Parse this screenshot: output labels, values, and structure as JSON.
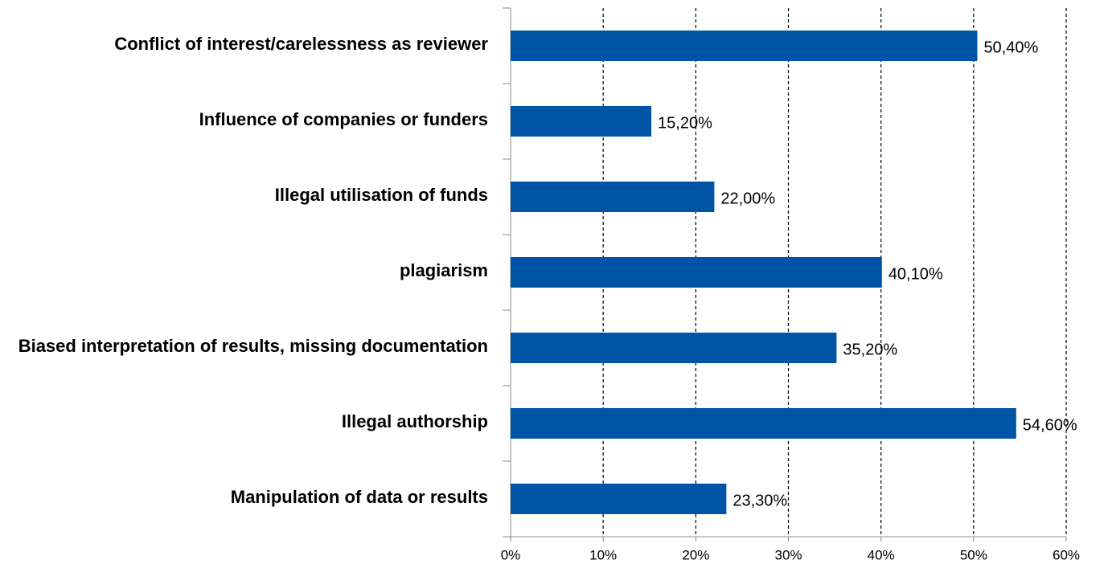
{
  "chart_data": {
    "type": "bar",
    "orientation": "horizontal",
    "categories": [
      "Conflict of interest/carelessness as reviewer",
      "Influence of companies or funders",
      "Illegal utilisation of funds",
      "plagiarism",
      "Biased interpretation of results, missing documentation",
      "Illegal authorship",
      "Manipulation of data or results"
    ],
    "values": [
      50.4,
      15.2,
      22.0,
      40.1,
      35.2,
      54.6,
      23.3
    ],
    "value_labels": [
      "50,40%",
      "15,20%",
      "22,00%",
      "40,10%",
      "35,20%",
      "54,60%",
      "23,30%"
    ],
    "color": "#0054a6",
    "xlim": [
      0,
      60
    ],
    "xticks": [
      {
        "value": 0,
        "label": "0%"
      },
      {
        "value": 10,
        "label": "10%"
      },
      {
        "value": 20,
        "label": "20%"
      },
      {
        "value": 30,
        "label": "30%"
      },
      {
        "value": 40,
        "label": "40%"
      },
      {
        "value": 50,
        "label": "50%"
      },
      {
        "value": 60,
        "label": "60%"
      }
    ],
    "grid": true
  }
}
